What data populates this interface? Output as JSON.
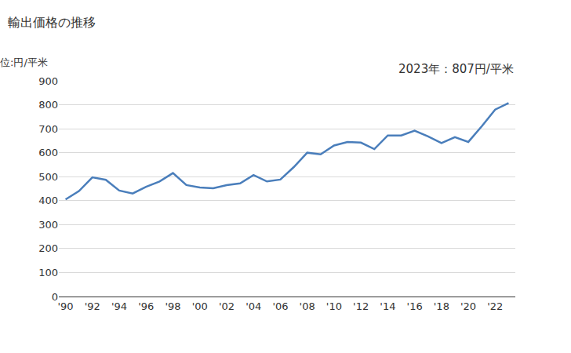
{
  "chart_data": {
    "type": "line",
    "title": "輸出価格の推移",
    "ylabel": "単位:円/平米",
    "annotations": [
      "2023年：807円/平米"
    ],
    "color": "#4a7ebb",
    "grid": true,
    "x": [
      1990,
      1991,
      1992,
      1993,
      1994,
      1995,
      1996,
      1997,
      1998,
      1999,
      2000,
      2001,
      2002,
      2003,
      2004,
      2005,
      2006,
      2007,
      2008,
      2009,
      2010,
      2011,
      2012,
      2013,
      2014,
      2015,
      2016,
      2017,
      2018,
      2019,
      2020,
      2021,
      2022,
      2023
    ],
    "values": [
      405,
      440,
      497,
      487,
      442,
      430,
      458,
      480,
      515,
      465,
      455,
      452,
      465,
      472,
      507,
      480,
      488,
      540,
      600,
      593,
      630,
      645,
      642,
      615,
      672,
      672,
      692,
      668,
      640,
      665,
      645,
      710,
      780,
      807
    ],
    "xlim": [
      1989.5,
      2023.5
    ],
    "xticks": [
      {
        "value": 1990,
        "label": "'90"
      },
      {
        "value": 1992,
        "label": "'92"
      },
      {
        "value": 1994,
        "label": "'94"
      },
      {
        "value": 1996,
        "label": "'96"
      },
      {
        "value": 1998,
        "label": "'98"
      },
      {
        "value": 2000,
        "label": "'00"
      },
      {
        "value": 2002,
        "label": "'02"
      },
      {
        "value": 2004,
        "label": "'04"
      },
      {
        "value": 2006,
        "label": "'06"
      },
      {
        "value": 2008,
        "label": "'08"
      },
      {
        "value": 2010,
        "label": "'10"
      },
      {
        "value": 2012,
        "label": "'12"
      },
      {
        "value": 2014,
        "label": "'14"
      },
      {
        "value": 2016,
        "label": "'16"
      },
      {
        "value": 2018,
        "label": "'18"
      },
      {
        "value": 2020,
        "label": "'20"
      },
      {
        "value": 2022,
        "label": "'22"
      }
    ],
    "ylim": [
      0,
      900
    ],
    "yticks": [
      0,
      100,
      200,
      300,
      400,
      500,
      600,
      700,
      800,
      900
    ]
  }
}
